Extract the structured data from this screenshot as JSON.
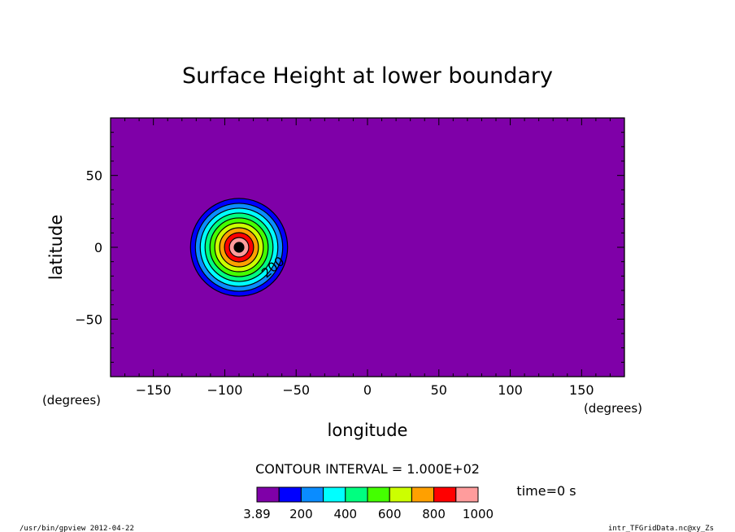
{
  "chart_data": {
    "type": "contour",
    "title": "Surface Height at lower boundary",
    "xlabel": "longitude",
    "ylabel": "latitude",
    "xunit": "(degrees)",
    "yunit": "(degrees)",
    "xlim": [
      -180,
      180
    ],
    "ylim": [
      -90,
      90
    ],
    "xticks": [
      -150,
      -100,
      -50,
      0,
      50,
      100,
      150
    ],
    "yticks": [
      50,
      0,
      -50
    ],
    "feature": {
      "type": "isolated-mountain",
      "center_lon": -90,
      "center_lat": 0,
      "radius_deg": 34,
      "peak_height": 1000
    },
    "contour_interval_label": "CONTOUR INTERVAL = 1.000E+02",
    "contour_label": "200",
    "contour_levels": [
      3.89,
      100,
      200,
      300,
      400,
      500,
      600,
      700,
      800,
      900,
      1000
    ],
    "colorbar": {
      "colors": [
        "#7f00a8",
        "#0000ff",
        "#0a8cff",
        "#00ffff",
        "#00ff80",
        "#44ff00",
        "#ccff00",
        "#ffa000",
        "#ff0000",
        "#ff9c9c"
      ],
      "tick_labels": [
        "3.89",
        "200",
        "400",
        "600",
        "800",
        "1000"
      ],
      "tick_values": [
        3.89,
        200,
        400,
        600,
        800,
        1000
      ]
    },
    "time_label": "time=0 s",
    "grid": false,
    "legend": "bottom"
  },
  "footer": {
    "left": "/usr/bin/gpview  2012-04-22",
    "right": "intr_TFGridData.nc@xy_Zs"
  }
}
